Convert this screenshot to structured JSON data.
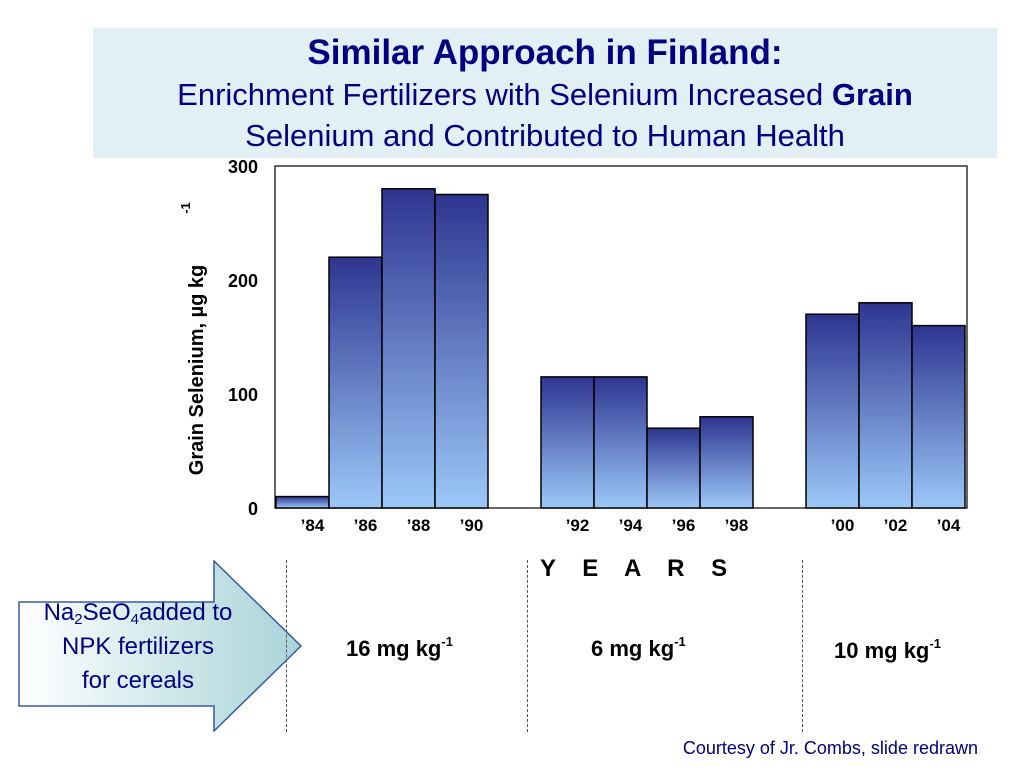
{
  "title": {
    "line1": "Similar Approach in Finland:",
    "line2_pre": "Enrichment Fertilizers with Selenium Increased ",
    "line2_bold": "Grain",
    "line3": "Selenium and Contributed to Human Health"
  },
  "chart_data": {
    "type": "bar",
    "title": "",
    "xlabel": "Y E A R S",
    "ylabel": "Grain Selenium, µg kg",
    "ylabel_superscript": "-1",
    "ylim": [
      0,
      300
    ],
    "yticks": [
      "0",
      "100",
      "200",
      "300"
    ],
    "grid": false,
    "categories": [
      "’84",
      "’86",
      "’88",
      "’90",
      "’92",
      "’94",
      "’96",
      "’98",
      "’00",
      "’02",
      "’04"
    ],
    "values": [
      10,
      220,
      280,
      275,
      115,
      115,
      70,
      80,
      170,
      180,
      160
    ],
    "colors": {
      "bar_top": "#2e3590",
      "bar_bottom": "#9cc8f8",
      "outline": "#000000"
    }
  },
  "arrow": {
    "chem_na": "Na",
    "chem_sub1": "2",
    "chem_seo": "SeO",
    "chem_sub2": "4",
    "line1_tail": "added to",
    "line2": "NPK fertilizers",
    "line3": "for cereals"
  },
  "rates": [
    {
      "value": "16 mg kg",
      "sup": "-1"
    },
    {
      "value": "6 mg kg",
      "sup": "-1"
    },
    {
      "value": "10 mg kg",
      "sup": "-1"
    }
  ],
  "credit": "Courtesy of Jr. Combs, slide redrawn"
}
